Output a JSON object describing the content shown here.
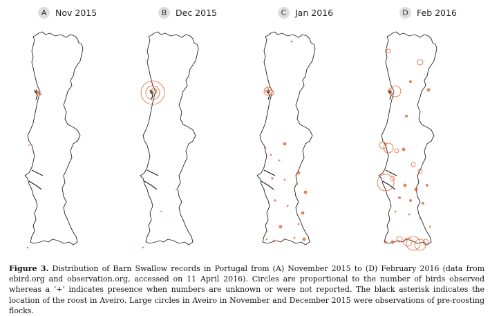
{
  "panels": [
    {
      "letter": "A",
      "title": "Nov 2015"
    },
    {
      "letter": "B",
      "title": "Dec 2015"
    },
    {
      "letter": "C",
      "title": "Jan 2016"
    },
    {
      "letter": "D",
      "title": "Feb 2016"
    }
  ],
  "caption": {
    "label": "Figure 3.",
    "text": "Distribution of Barn Swallow records in Portugal from (A) November 2015 to (D) February 2016 (data from ebird.org and observation.org, accessed on 11 April 2016). Circles are proportional to the number of birds observed whereas a ‘+’ indicates presence when numbers are unknown or were not reported. The black asterisk indicates the location of the roost in Aveiro. Large circles in Aveiro in November and December 2015 were observations of pre-roosting flocks."
  },
  "colors": {
    "record": "#e8602c",
    "outline": "#222222",
    "badge": "#dedede"
  }
}
